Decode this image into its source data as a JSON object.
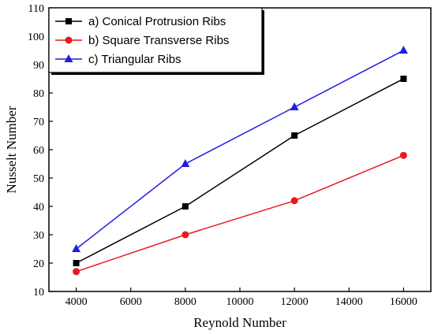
{
  "chart_data": {
    "type": "line",
    "xlabel": "Reynold Number",
    "ylabel": "Nusselt Number",
    "xlim": [
      3000,
      17000
    ],
    "ylim": [
      10,
      110
    ],
    "x_ticks": [
      4000,
      6000,
      8000,
      10000,
      12000,
      14000,
      16000
    ],
    "y_ticks": [
      10,
      20,
      30,
      40,
      50,
      60,
      70,
      80,
      90,
      100,
      110
    ],
    "x": [
      4000,
      8000,
      12000,
      16000
    ],
    "series": [
      {
        "name": "a) Conical Protrusion Ribs",
        "values": [
          20,
          40,
          65,
          85
        ],
        "color": "#000000",
        "marker": "square"
      },
      {
        "name": "b) Square Transverse Ribs",
        "values": [
          17,
          30,
          42,
          58
        ],
        "color": "#e8191e",
        "marker": "circle"
      },
      {
        "name": "c) Triangular Ribs",
        "values": [
          25,
          55,
          75,
          95
        ],
        "color": "#1f1fdf",
        "marker": "triangle"
      }
    ],
    "legend_position": "top-left",
    "grid": false
  }
}
